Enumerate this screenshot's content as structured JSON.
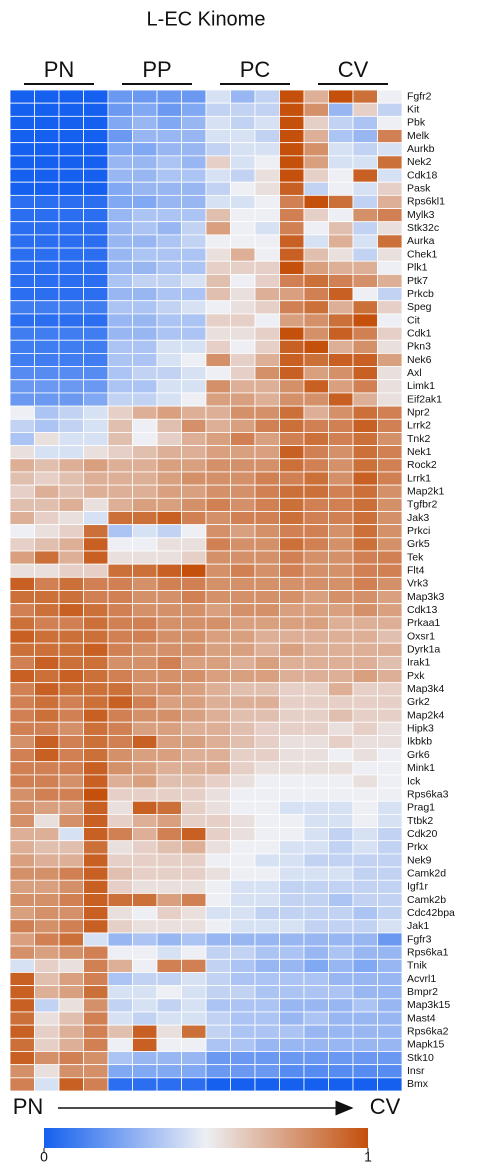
{
  "chart_data": {
    "type": "heatmap",
    "title": "L-EC Kinome",
    "column_groups": [
      "PN",
      "PP",
      "PC",
      "CV"
    ],
    "x_axis": {
      "start": "PN",
      "end": "CV"
    },
    "colorscale": [
      "#1560ef",
      "#edeff4",
      "#c4500c"
    ],
    "zlim": [
      0,
      1
    ],
    "colorbar_ticks": [
      0,
      1
    ],
    "rows": [
      "Fgfr2",
      "Kit",
      "Pbk",
      "Melk",
      "Aurkb",
      "Nek2",
      "Cdk18",
      "Pask",
      "Rps6kl1",
      "Mylk3",
      "Stk32c",
      "Aurka",
      "Chek1",
      "Plk1",
      "Ptk7",
      "Prkcb",
      "Speg",
      "Cit",
      "Cdk1",
      "Pkn3",
      "Nek6",
      "Axl",
      "Limk1",
      "Eif2ak1",
      "Npr2",
      "Lrrk2",
      "Tnk2",
      "Nek1",
      "Rock2",
      "Lrrk1",
      "Map2k1",
      "Tgfbr2",
      "Jak3",
      "Prkci",
      "Grk5",
      "Tek",
      "Flt4",
      "Vrk3",
      "Map3k3",
      "Cdk13",
      "Prkaa1",
      "Oxsr1",
      "Dyrk1a",
      "Irak1",
      "Pxk",
      "Map3k4",
      "Grk2",
      "Map2k4",
      "Hipk3",
      "Ikbkb",
      "Grk6",
      "Mink1",
      "Ick",
      "Rps6ka3",
      "Prag1",
      "Ttbk2",
      "Cdk20",
      "Prkx",
      "Nek9",
      "Camk2d",
      "Igf1r",
      "Camk2b",
      "Cdc42bpa",
      "Jak1",
      "Fgfr3",
      "Rps6ka1",
      "Tnik",
      "Acvrl1",
      "Bmpr2",
      "Map3k15",
      "Mast4",
      "Rps6ka2",
      "Mapk15",
      "Stk10",
      "Insr",
      "Bmx"
    ],
    "values": [
      [
        0,
        0,
        0,
        0,
        0.2,
        0.2,
        0.2,
        0.2,
        0.45,
        0.3,
        0.4,
        1,
        0.7,
        1,
        0.9,
        0.5
      ],
      [
        0,
        0,
        0,
        0,
        0.2,
        0.25,
        0.2,
        0.25,
        0.4,
        0.4,
        0.4,
        1,
        0.8,
        0.3,
        0.6,
        0.4
      ],
      [
        0,
        0,
        0,
        0,
        0.25,
        0.3,
        0.25,
        0.3,
        0.45,
        0.4,
        0.45,
        1,
        0.6,
        0.4,
        0.35,
        0.5
      ],
      [
        0,
        0,
        0,
        0,
        0.2,
        0.3,
        0.3,
        0.3,
        0.45,
        0.45,
        0.4,
        1,
        0.7,
        0.35,
        0.3,
        0.85
      ],
      [
        0,
        0,
        0,
        0,
        0.25,
        0.25,
        0.3,
        0.3,
        0.4,
        0.45,
        0.45,
        1,
        0.8,
        0.45,
        0.4,
        0.45
      ],
      [
        0,
        0,
        0,
        0,
        0.3,
        0.3,
        0.35,
        0.3,
        0.6,
        0.45,
        0.5,
        1,
        0.75,
        0.45,
        0.45,
        0.9
      ],
      [
        0,
        0,
        0,
        0,
        0.3,
        0.3,
        0.35,
        0.35,
        0.45,
        0.4,
        0.55,
        1,
        0.6,
        0.5,
        0.95,
        0.45
      ],
      [
        0,
        0,
        0,
        0,
        0.25,
        0.3,
        0.3,
        0.3,
        0.4,
        0.5,
        0.55,
        0.95,
        0.4,
        0.5,
        0.45,
        0.6
      ],
      [
        0.05,
        0.05,
        0.05,
        0.05,
        0.25,
        0.25,
        0.3,
        0.3,
        0.45,
        0.45,
        0.5,
        0.85,
        1,
        0.9,
        0.4,
        0.7
      ],
      [
        0.05,
        0.05,
        0.05,
        0.05,
        0.3,
        0.35,
        0.35,
        0.35,
        0.65,
        0.5,
        0.5,
        0.85,
        0.6,
        0.5,
        0.8,
        0.85
      ],
      [
        0.05,
        0.05,
        0.05,
        0.05,
        0.3,
        0.35,
        0.3,
        0.4,
        0.75,
        0.5,
        0.45,
        0.85,
        0.5,
        0.65,
        0.4,
        0.55
      ],
      [
        0.05,
        0.05,
        0.05,
        0.05,
        0.3,
        0.3,
        0.35,
        0.4,
        0.5,
        0.5,
        0.5,
        0.95,
        0.45,
        0.7,
        0.45,
        0.9
      ],
      [
        0.05,
        0.05,
        0.05,
        0.05,
        0.3,
        0.35,
        0.35,
        0.35,
        0.55,
        0.7,
        0.5,
        0.95,
        0.65,
        0.55,
        0.4,
        0.55
      ],
      [
        0.05,
        0.05,
        0.05,
        0.05,
        0.3,
        0.3,
        0.35,
        0.35,
        0.6,
        0.6,
        0.6,
        1,
        0.75,
        0.7,
        0.7,
        0.5
      ],
      [
        0.05,
        0.05,
        0.05,
        0.05,
        0.35,
        0.4,
        0.4,
        0.45,
        0.65,
        0.5,
        0.6,
        0.85,
        0.9,
        0.85,
        0.8,
        0.7
      ],
      [
        0.05,
        0.05,
        0.05,
        0.05,
        0.3,
        0.3,
        0.35,
        0.35,
        0.65,
        0.55,
        0.7,
        0.75,
        0.85,
        0.95,
        0.5,
        0.4
      ],
      [
        0.1,
        0.1,
        0.1,
        0.1,
        0.35,
        0.35,
        0.4,
        0.45,
        0.5,
        0.55,
        0.6,
        0.85,
        0.9,
        0.7,
        0.9,
        0.6
      ],
      [
        0.05,
        0.05,
        0.05,
        0.05,
        0.3,
        0.3,
        0.35,
        0.35,
        0.6,
        0.6,
        0.5,
        0.75,
        0.8,
        0.9,
        1,
        0.5
      ],
      [
        0.1,
        0.1,
        0.1,
        0.1,
        0.3,
        0.3,
        0.35,
        0.35,
        0.55,
        0.55,
        0.6,
        1,
        0.8,
        0.95,
        0.85,
        0.6
      ],
      [
        0.1,
        0.1,
        0.1,
        0.1,
        0.35,
        0.35,
        0.45,
        0.45,
        0.6,
        0.5,
        0.6,
        0.95,
        1,
        0.7,
        0.8,
        0.55
      ],
      [
        0.1,
        0.1,
        0.1,
        0.1,
        0.35,
        0.35,
        0.45,
        0.5,
        0.8,
        0.6,
        0.7,
        0.95,
        0.9,
        0.95,
        0.95,
        0.75
      ],
      [
        0.15,
        0.15,
        0.15,
        0.15,
        0.35,
        0.4,
        0.4,
        0.45,
        0.5,
        0.6,
        0.8,
        0.95,
        0.75,
        0.8,
        0.95,
        0.55
      ],
      [
        0.2,
        0.2,
        0.2,
        0.2,
        0.35,
        0.35,
        0.45,
        0.45,
        0.8,
        0.7,
        0.7,
        0.8,
        0.95,
        0.75,
        0.85,
        0.55
      ],
      [
        0.2,
        0.2,
        0.2,
        0.25,
        0.4,
        0.4,
        0.45,
        0.5,
        0.75,
        0.75,
        0.7,
        0.8,
        0.8,
        0.95,
        0.7,
        0.55
      ],
      [
        0.5,
        0.35,
        0.4,
        0.45,
        0.6,
        0.7,
        0.75,
        0.7,
        0.7,
        0.8,
        0.8,
        0.9,
        0.7,
        0.8,
        0.9,
        0.85
      ],
      [
        0.4,
        0.35,
        0.4,
        0.45,
        0.65,
        0.5,
        0.65,
        0.8,
        0.7,
        0.75,
        0.85,
        0.9,
        0.85,
        0.85,
        0.95,
        0.85
      ],
      [
        0.35,
        0.55,
        0.45,
        0.45,
        0.65,
        0.5,
        0.6,
        0.7,
        0.75,
        0.85,
        0.75,
        0.85,
        0.9,
        0.85,
        0.9,
        0.8
      ],
      [
        0.55,
        0.45,
        0.45,
        0.55,
        0.6,
        0.65,
        0.7,
        0.7,
        0.75,
        0.75,
        0.75,
        0.95,
        0.85,
        0.8,
        0.9,
        0.85
      ],
      [
        0.7,
        0.65,
        0.7,
        0.75,
        0.7,
        0.7,
        0.75,
        0.75,
        0.8,
        0.8,
        0.8,
        0.9,
        0.85,
        0.8,
        0.9,
        0.85
      ],
      [
        0.65,
        0.6,
        0.65,
        0.7,
        0.7,
        0.7,
        0.75,
        0.8,
        0.8,
        0.8,
        0.85,
        0.85,
        0.9,
        0.8,
        0.95,
        0.85
      ],
      [
        0.6,
        0.7,
        0.65,
        0.7,
        0.7,
        0.7,
        0.75,
        0.75,
        0.8,
        0.8,
        0.85,
        0.9,
        0.9,
        0.85,
        0.9,
        0.8
      ],
      [
        0.65,
        0.65,
        0.7,
        0.55,
        0.7,
        0.75,
        0.75,
        0.8,
        0.85,
        0.8,
        0.85,
        0.9,
        0.85,
        0.85,
        0.9,
        0.8
      ],
      [
        0.7,
        0.6,
        0.55,
        0.45,
        0.9,
        0.9,
        0.95,
        0.85,
        0.8,
        0.85,
        0.85,
        0.9,
        0.85,
        0.85,
        0.9,
        0.8
      ],
      [
        0.5,
        0.55,
        0.6,
        0.9,
        0.35,
        0.45,
        0.4,
        0.5,
        0.8,
        0.75,
        0.8,
        0.85,
        0.85,
        0.8,
        0.9,
        0.8
      ],
      [
        0.6,
        0.65,
        0.7,
        0.95,
        0.5,
        0.5,
        0.55,
        0.55,
        0.85,
        0.8,
        0.8,
        0.9,
        0.85,
        0.8,
        0.9,
        0.8
      ],
      [
        0.75,
        0.9,
        0.7,
        0.95,
        0.55,
        0.55,
        0.55,
        0.6,
        0.8,
        0.8,
        0.8,
        0.85,
        0.8,
        0.8,
        0.85,
        0.85
      ],
      [
        0.55,
        0.55,
        0.6,
        0.6,
        0.9,
        0.9,
        0.95,
        1,
        0.8,
        0.85,
        0.8,
        0.85,
        0.8,
        0.8,
        0.85,
        0.85
      ],
      [
        0.95,
        0.85,
        0.9,
        0.85,
        0.85,
        0.8,
        0.85,
        0.85,
        0.8,
        0.8,
        0.8,
        0.8,
        0.8,
        0.8,
        0.85,
        0.8
      ],
      [
        0.9,
        0.9,
        0.9,
        0.85,
        0.85,
        0.8,
        0.8,
        0.85,
        0.8,
        0.8,
        0.8,
        0.8,
        0.75,
        0.8,
        0.8,
        0.75
      ],
      [
        0.85,
        0.9,
        0.95,
        0.9,
        0.85,
        0.8,
        0.8,
        0.8,
        0.75,
        0.8,
        0.8,
        0.75,
        0.75,
        0.75,
        0.8,
        0.75
      ],
      [
        0.9,
        0.85,
        0.85,
        0.9,
        0.85,
        0.85,
        0.8,
        0.8,
        0.8,
        0.75,
        0.75,
        0.75,
        0.75,
        0.7,
        0.7,
        0.7
      ],
      [
        0.95,
        0.9,
        0.9,
        0.9,
        0.85,
        0.85,
        0.8,
        0.8,
        0.75,
        0.75,
        0.7,
        0.7,
        0.7,
        0.7,
        0.7,
        0.65
      ],
      [
        0.9,
        0.9,
        0.9,
        0.95,
        0.85,
        0.8,
        0.8,
        0.8,
        0.75,
        0.75,
        0.7,
        0.75,
        0.7,
        0.7,
        0.7,
        0.7
      ],
      [
        0.85,
        0.95,
        0.9,
        0.9,
        0.8,
        0.8,
        0.85,
        0.75,
        0.75,
        0.7,
        0.75,
        0.7,
        0.7,
        0.7,
        0.7,
        0.65
      ],
      [
        0.95,
        0.9,
        0.95,
        0.9,
        0.85,
        0.8,
        0.8,
        0.8,
        0.75,
        0.75,
        0.75,
        0.7,
        0.7,
        0.7,
        0.75,
        0.7
      ],
      [
        0.85,
        0.95,
        0.9,
        0.9,
        0.9,
        0.8,
        0.8,
        0.75,
        0.7,
        0.65,
        0.65,
        0.6,
        0.6,
        0.7,
        0.6,
        0.6
      ],
      [
        0.85,
        0.9,
        0.85,
        0.9,
        0.95,
        0.85,
        0.75,
        0.75,
        0.7,
        0.7,
        0.7,
        0.6,
        0.6,
        0.6,
        0.6,
        0.6
      ],
      [
        0.85,
        0.9,
        0.85,
        0.95,
        0.85,
        0.8,
        0.8,
        0.75,
        0.7,
        0.65,
        0.65,
        0.6,
        0.6,
        0.65,
        0.6,
        0.6
      ],
      [
        0.85,
        0.85,
        0.8,
        0.9,
        0.85,
        0.75,
        0.75,
        0.7,
        0.7,
        0.65,
        0.6,
        0.6,
        0.6,
        0.55,
        0.6,
        0.55
      ],
      [
        0.8,
        0.95,
        0.85,
        0.9,
        0.85,
        0.95,
        0.75,
        0.75,
        0.7,
        0.65,
        0.6,
        0.55,
        0.55,
        0.6,
        0.55,
        0.55
      ],
      [
        0.85,
        0.95,
        0.85,
        0.9,
        0.8,
        0.75,
        0.75,
        0.7,
        0.7,
        0.6,
        0.6,
        0.55,
        0.55,
        0.5,
        0.55,
        0.5
      ],
      [
        0.85,
        0.85,
        0.85,
        0.95,
        0.8,
        0.75,
        0.7,
        0.7,
        0.7,
        0.6,
        0.55,
        0.55,
        0.55,
        0.55,
        0.5,
        0.5
      ],
      [
        0.85,
        0.85,
        0.8,
        0.95,
        0.7,
        0.75,
        0.65,
        0.65,
        0.6,
        0.55,
        0.5,
        0.5,
        0.5,
        0.5,
        0.55,
        0.5
      ],
      [
        0.8,
        0.85,
        0.85,
        1,
        0.6,
        0.6,
        0.6,
        0.6,
        0.55,
        0.5,
        0.5,
        0.5,
        0.5,
        0.5,
        0.5,
        0.5
      ],
      [
        0.8,
        0.75,
        0.75,
        0.95,
        0.55,
        0.95,
        0.9,
        0.6,
        0.55,
        0.5,
        0.5,
        0.45,
        0.45,
        0.45,
        0.5,
        0.45
      ],
      [
        0.8,
        0.55,
        0.8,
        0.95,
        0.6,
        0.7,
        0.75,
        0.6,
        0.6,
        0.55,
        0.5,
        0.5,
        0.45,
        0.45,
        0.5,
        0.45
      ],
      [
        0.7,
        0.7,
        0.45,
        0.95,
        0.85,
        0.7,
        0.85,
        0.95,
        0.6,
        0.55,
        0.5,
        0.5,
        0.45,
        0.4,
        0.45,
        0.4
      ],
      [
        0.7,
        0.65,
        0.65,
        0.9,
        0.55,
        0.6,
        0.65,
        0.7,
        0.55,
        0.5,
        0.5,
        0.45,
        0.45,
        0.4,
        0.45,
        0.4
      ],
      [
        0.75,
        0.7,
        0.7,
        0.95,
        0.6,
        0.6,
        0.6,
        0.6,
        0.5,
        0.5,
        0.45,
        0.45,
        0.4,
        0.4,
        0.4,
        0.4
      ],
      [
        0.8,
        0.8,
        0.85,
        0.95,
        0.65,
        0.6,
        0.6,
        0.6,
        0.55,
        0.5,
        0.5,
        0.45,
        0.45,
        0.45,
        0.4,
        0.4
      ],
      [
        0.75,
        0.75,
        0.8,
        0.95,
        0.6,
        0.55,
        0.55,
        0.55,
        0.5,
        0.45,
        0.45,
        0.4,
        0.4,
        0.4,
        0.4,
        0.4
      ],
      [
        0.8,
        0.8,
        0.85,
        0.95,
        0.9,
        0.9,
        0.75,
        0.85,
        0.5,
        0.45,
        0.45,
        0.4,
        0.4,
        0.35,
        0.4,
        0.4
      ],
      [
        0.75,
        0.8,
        0.8,
        0.95,
        0.55,
        0.5,
        0.6,
        0.55,
        0.45,
        0.45,
        0.4,
        0.4,
        0.4,
        0.4,
        0.35,
        0.4
      ],
      [
        0.85,
        0.8,
        0.85,
        0.95,
        0.6,
        0.55,
        0.55,
        0.55,
        0.5,
        0.45,
        0.45,
        0.45,
        0.4,
        0.4,
        0.4,
        0.45
      ],
      [
        0.75,
        0.85,
        0.9,
        0.45,
        0.3,
        0.35,
        0.3,
        0.35,
        0.3,
        0.3,
        0.3,
        0.3,
        0.3,
        0.3,
        0.3,
        0.2
      ],
      [
        0.8,
        0.75,
        0.8,
        0.85,
        0.5,
        0.5,
        0.45,
        0.5,
        0.4,
        0.4,
        0.35,
        0.35,
        0.3,
        0.35,
        0.3,
        0.3
      ],
      [
        0.45,
        0.6,
        0.55,
        0.85,
        0.7,
        0.5,
        0.85,
        0.85,
        0.4,
        0.35,
        0.3,
        0.3,
        0.25,
        0.3,
        0.25,
        0.3
      ],
      [
        0.95,
        0.65,
        0.75,
        0.85,
        0.35,
        0.4,
        0.4,
        0.45,
        0.4,
        0.35,
        0.35,
        0.35,
        0.35,
        0.3,
        0.3,
        0.3
      ],
      [
        0.95,
        0.7,
        0.75,
        0.9,
        0.45,
        0.45,
        0.5,
        0.45,
        0.4,
        0.4,
        0.35,
        0.35,
        0.35,
        0.35,
        0.3,
        0.3
      ],
      [
        0.95,
        0.4,
        0.55,
        0.8,
        0.4,
        0.45,
        0.4,
        0.45,
        0.35,
        0.35,
        0.35,
        0.3,
        0.3,
        0.3,
        0.35,
        0.3
      ],
      [
        0.9,
        0.55,
        0.65,
        0.85,
        0.45,
        0.4,
        0.45,
        0.45,
        0.4,
        0.35,
        0.35,
        0.3,
        0.35,
        0.3,
        0.3,
        0.3
      ],
      [
        0.95,
        0.6,
        0.7,
        0.85,
        0.65,
        0.95,
        0.55,
        0.9,
        0.4,
        0.35,
        0.35,
        0.35,
        0.3,
        0.3,
        0.3,
        0.3
      ],
      [
        0.9,
        0.6,
        0.7,
        0.85,
        0.5,
        0.95,
        0.5,
        0.5,
        0.35,
        0.35,
        0.3,
        0.3,
        0.3,
        0.3,
        0.3,
        0.3
      ],
      [
        0.95,
        0.8,
        0.85,
        0.8,
        0.35,
        0.3,
        0.3,
        0.3,
        0.2,
        0.2,
        0.2,
        0.2,
        0.2,
        0.2,
        0.2,
        0.2
      ],
      [
        0.8,
        0.55,
        0.8,
        0.8,
        0.25,
        0.25,
        0.25,
        0.25,
        0.2,
        0.2,
        0.2,
        0.15,
        0.15,
        0.15,
        0.15,
        0.15
      ],
      [
        0.85,
        0.45,
        0.95,
        0.85,
        0.05,
        0.05,
        0.05,
        0.05,
        0,
        0,
        0,
        0,
        0,
        0,
        0,
        0
      ]
    ]
  }
}
